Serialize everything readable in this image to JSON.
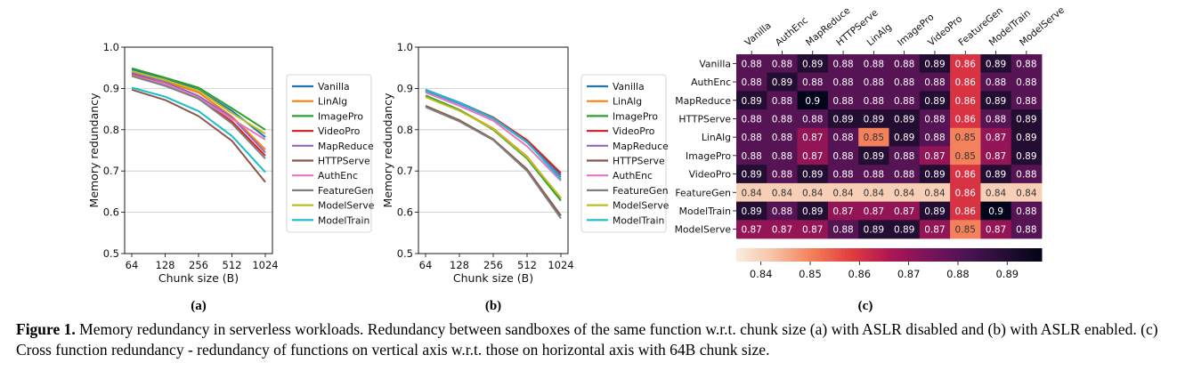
{
  "chart_data": [
    {
      "type": "line",
      "panel_label": "(a)",
      "title": "",
      "xlabel": "Chunk size (B)",
      "ylabel": "Memory redundancy",
      "x": [
        "64",
        "128",
        "256",
        "512",
        "1024"
      ],
      "yticks": [
        "0.5",
        "0.6",
        "0.7",
        "0.8",
        "0.9",
        "1.0"
      ],
      "ylim": [
        0.5,
        1.0
      ],
      "grid": "horizontal",
      "legend_position": "right-outside",
      "series": [
        {
          "name": "Vanilla",
          "color": "#1f77b4",
          "values": [
            0.945,
            0.925,
            0.897,
            0.846,
            0.782
          ]
        },
        {
          "name": "LinAlg",
          "color": "#ff7f0e",
          "values": [
            0.94,
            0.917,
            0.89,
            0.832,
            0.752
          ]
        },
        {
          "name": "ImagePro",
          "color": "#2ca02c",
          "values": [
            0.949,
            0.926,
            0.902,
            0.852,
            0.8
          ]
        },
        {
          "name": "VideoPro",
          "color": "#d62728",
          "values": [
            0.935,
            0.91,
            0.875,
            0.82,
            0.737
          ]
        },
        {
          "name": "MapReduce",
          "color": "#9467bd",
          "values": [
            0.938,
            0.915,
            0.882,
            0.83,
            0.745
          ]
        },
        {
          "name": "HTTPServe",
          "color": "#8c564b",
          "values": [
            0.897,
            0.872,
            0.833,
            0.773,
            0.673
          ]
        },
        {
          "name": "AuthEnc",
          "color": "#e377c2",
          "values": [
            0.932,
            0.91,
            0.877,
            0.826,
            0.776
          ]
        },
        {
          "name": "FeatureGen",
          "color": "#7f7f7f",
          "values": [
            0.93,
            0.906,
            0.875,
            0.815,
            0.73
          ]
        },
        {
          "name": "ModelServe",
          "color": "#bcbd22",
          "values": [
            0.942,
            0.92,
            0.895,
            0.84,
            0.79
          ]
        },
        {
          "name": "ModelTrain",
          "color": "#17becf",
          "values": [
            0.902,
            0.88,
            0.845,
            0.785,
            0.697
          ]
        }
      ]
    },
    {
      "type": "line",
      "panel_label": "(b)",
      "title": "",
      "xlabel": "Chunk size (B)",
      "ylabel": "Memory redundancy",
      "x": [
        "64",
        "128",
        "256",
        "512",
        "1024"
      ],
      "yticks": [
        "0.5",
        "0.6",
        "0.7",
        "0.8",
        "0.9",
        "1.0"
      ],
      "ylim": [
        0.5,
        1.0
      ],
      "grid": "horizontal",
      "legend_position": "right-outside",
      "series": [
        {
          "name": "Vanilla",
          "color": "#1f77b4",
          "values": [
            0.897,
            0.866,
            0.83,
            0.772,
            0.69
          ]
        },
        {
          "name": "LinAlg",
          "color": "#ff7f0e",
          "values": [
            0.882,
            0.848,
            0.803,
            0.735,
            0.633
          ]
        },
        {
          "name": "ImagePro",
          "color": "#2ca02c",
          "values": [
            0.883,
            0.848,
            0.8,
            0.73,
            0.628
          ]
        },
        {
          "name": "VideoPro",
          "color": "#d62728",
          "values": [
            0.895,
            0.864,
            0.83,
            0.775,
            0.695
          ]
        },
        {
          "name": "MapReduce",
          "color": "#9467bd",
          "values": [
            0.894,
            0.863,
            0.827,
            0.769,
            0.685
          ]
        },
        {
          "name": "HTTPServe",
          "color": "#8c564b",
          "values": [
            0.858,
            0.823,
            0.777,
            0.704,
            0.592
          ]
        },
        {
          "name": "AuthEnc",
          "color": "#e377c2",
          "values": [
            0.89,
            0.858,
            0.822,
            0.76,
            0.676
          ]
        },
        {
          "name": "FeatureGen",
          "color": "#7f7f7f",
          "values": [
            0.855,
            0.82,
            0.775,
            0.7,
            0.585
          ]
        },
        {
          "name": "ModelServe",
          "color": "#bcbd22",
          "values": [
            0.879,
            0.846,
            0.802,
            0.733,
            0.635
          ]
        },
        {
          "name": "ModelTrain",
          "color": "#17becf",
          "values": [
            0.896,
            0.865,
            0.828,
            0.77,
            0.68
          ]
        }
      ]
    },
    {
      "type": "heatmap",
      "panel_label": "(c)",
      "title": "",
      "colormap": "rocket",
      "colorbar_ticks": [
        "0.84",
        "0.85",
        "0.86",
        "0.87",
        "0.88",
        "0.89"
      ],
      "colorbar_range": [
        0.835,
        0.897
      ],
      "columns": [
        "Vanilla",
        "AuthEnc",
        "MapReduce",
        "HTTPServe",
        "LinAlg",
        "ImagePro",
        "VideoPro",
        "FeatureGen",
        "ModelTrain",
        "ModelServe"
      ],
      "rows": [
        "Vanilla",
        "AuthEnc",
        "MapReduce",
        "HTTPServe",
        "LinAlg",
        "ImagePro",
        "VideoPro",
        "FeatureGen",
        "ModelTrain",
        "ModelServe"
      ],
      "values": [
        [
          "0.88",
          "0.88",
          "0.89",
          "0.88",
          "0.88",
          "0.88",
          "0.89",
          "0.86",
          "0.89",
          "0.88"
        ],
        [
          "0.88",
          "0.89",
          "0.88",
          "0.88",
          "0.88",
          "0.88",
          "0.88",
          "0.86",
          "0.88",
          "0.88"
        ],
        [
          "0.89",
          "0.88",
          "0.9",
          "0.88",
          "0.88",
          "0.88",
          "0.89",
          "0.86",
          "0.89",
          "0.88"
        ],
        [
          "0.88",
          "0.88",
          "0.88",
          "0.89",
          "0.89",
          "0.89",
          "0.88",
          "0.86",
          "0.88",
          "0.89"
        ],
        [
          "0.88",
          "0.88",
          "0.87",
          "0.88",
          "0.85",
          "0.89",
          "0.88",
          "0.85",
          "0.87",
          "0.89"
        ],
        [
          "0.88",
          "0.88",
          "0.87",
          "0.88",
          "0.89",
          "0.88",
          "0.87",
          "0.85",
          "0.87",
          "0.89"
        ],
        [
          "0.89",
          "0.88",
          "0.89",
          "0.88",
          "0.88",
          "0.88",
          "0.89",
          "0.86",
          "0.89",
          "0.88"
        ],
        [
          "0.84",
          "0.84",
          "0.84",
          "0.84",
          "0.84",
          "0.84",
          "0.84",
          "0.86",
          "0.84",
          "0.84"
        ],
        [
          "0.89",
          "0.88",
          "0.89",
          "0.87",
          "0.87",
          "0.87",
          "0.89",
          "0.86",
          "0.9",
          "0.88"
        ],
        [
          "0.87",
          "0.87",
          "0.87",
          "0.88",
          "0.89",
          "0.89",
          "0.87",
          "0.85",
          "0.87",
          "0.88"
        ]
      ]
    }
  ],
  "caption": {
    "lead": "Figure 1.",
    "text": " Memory redundancy in serverless workloads. Redundancy between sandboxes of the same function w.r.t. chunk size (a) with ASLR disabled and (b) with ASLR enabled. (c) Cross function redundancy - redundancy of functions on vertical axis w.r.t. those on horizontal axis with 64B chunk size."
  }
}
